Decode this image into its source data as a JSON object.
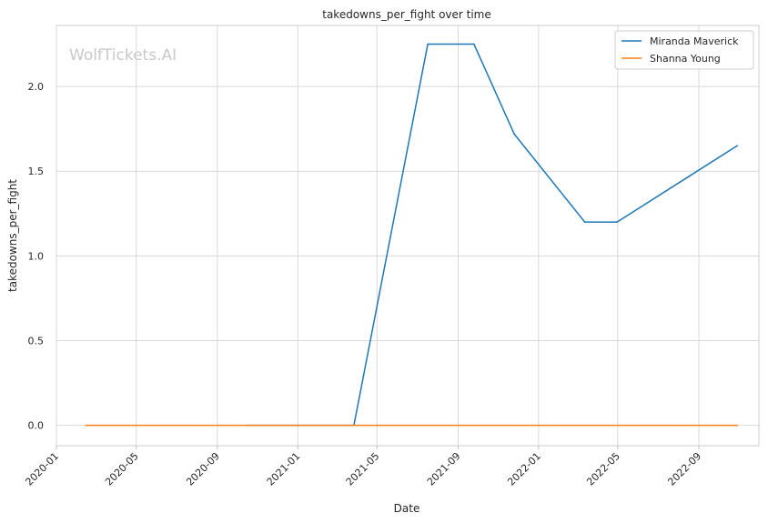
{
  "chart_data": {
    "type": "line",
    "title": "takedowns_per_fight over time",
    "xlabel": "Date",
    "ylabel": "takedowns_per_fight",
    "watermark": "WolfTickets.AI",
    "x_tick_labels": [
      "2020-01",
      "2020-05",
      "2020-09",
      "2021-01",
      "2021-05",
      "2021-09",
      "2022-01",
      "2022-05",
      "2022-09"
    ],
    "y_tick_labels": [
      "0.0",
      "0.5",
      "1.0",
      "1.5",
      "2.0"
    ],
    "ylim": [
      -0.12,
      2.36
    ],
    "xlim": [
      "2020-01-01",
      "2022-12-01"
    ],
    "grid": true,
    "legend_position": "top-right",
    "series": [
      {
        "name": "Miranda Maverick",
        "color": "#1f77b4",
        "points": [
          {
            "x": "2020-10-15",
            "y": 0.0
          },
          {
            "x": "2021-03-27",
            "y": 0.0
          },
          {
            "x": "2021-07-17",
            "y": 2.25
          },
          {
            "x": "2021-09-25",
            "y": 2.25
          },
          {
            "x": "2021-11-25",
            "y": 1.72
          },
          {
            "x": "2022-03-12",
            "y": 1.2
          },
          {
            "x": "2022-04-30",
            "y": 1.2
          },
          {
            "x": "2022-10-29",
            "y": 1.65
          }
        ]
      },
      {
        "name": "Shanna Young",
        "color": "#ff7f0e",
        "points": [
          {
            "x": "2020-02-15",
            "y": 0.0
          },
          {
            "x": "2022-10-29",
            "y": 0.0
          }
        ]
      }
    ]
  }
}
